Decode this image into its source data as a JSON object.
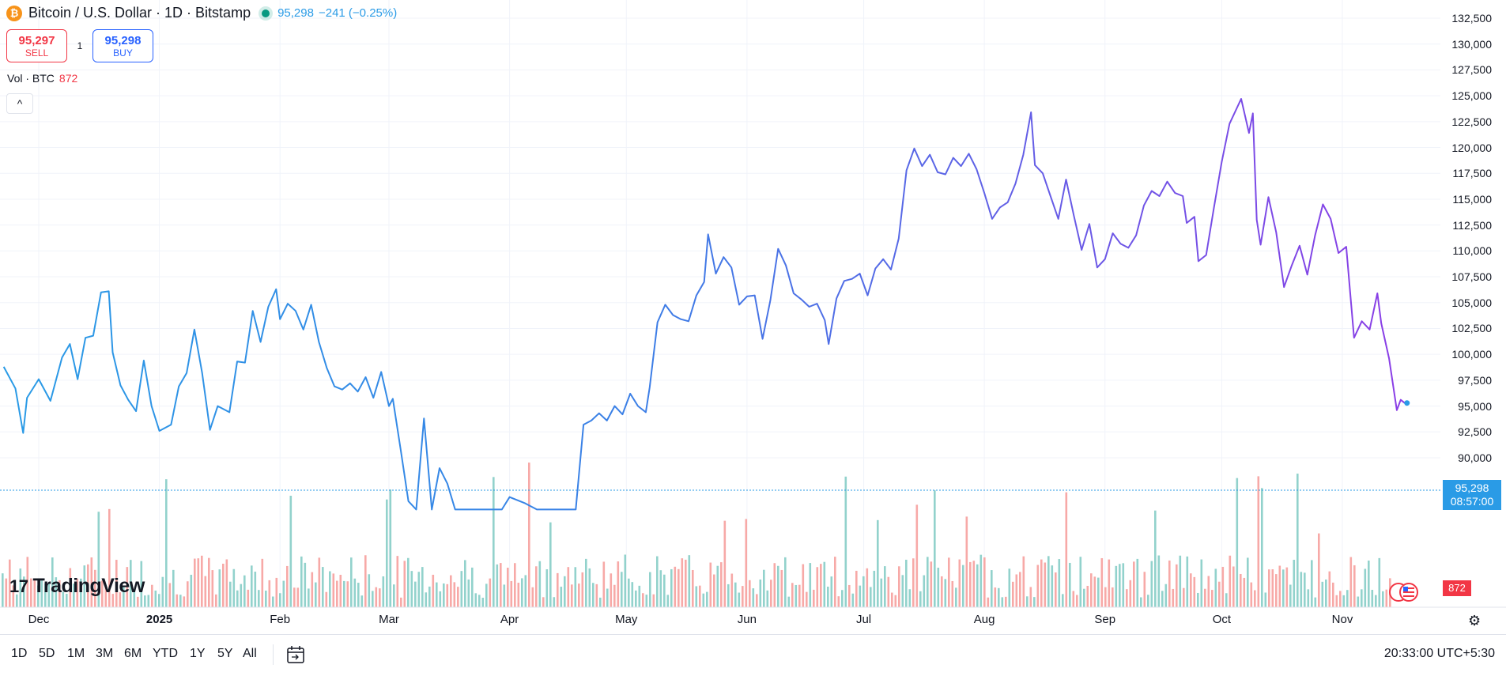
{
  "header": {
    "coin_icon": "₿",
    "symbol_title": "Bitcoin / U.S. Dollar · 1D · Bitstamp",
    "last_price": "95,298",
    "change": "−241 (−0.25%)"
  },
  "trade": {
    "sell_price": "95,297",
    "sell_label": "SELL",
    "spread": "1",
    "buy_price": "95,298",
    "buy_label": "BUY"
  },
  "volume_legend": {
    "label": "Vol · BTC",
    "value": "872"
  },
  "collapse_icon": "^",
  "price_axis_label": {
    "price": "95,298",
    "countdown": "08:57:00"
  },
  "volume_axis_label": "872",
  "logo_text": "TradingView",
  "bottom_bar": {
    "ranges": [
      "1D",
      "5D",
      "1M",
      "3M",
      "6M",
      "YTD",
      "1Y",
      "5Y",
      "All"
    ],
    "clock": "20:33:00 UTC+5:30"
  },
  "colors": {
    "line_start": "#2a9be6",
    "line_end": "#8b3ee6",
    "vol_up": "#92d2cc",
    "vol_down": "#f7a9a7",
    "grid": "#f0f3fa"
  },
  "chart_data": {
    "type": "line",
    "title": "Bitcoin / U.S. Dollar · 1D · Bitstamp",
    "x_labels": [
      "Dec",
      "2025",
      "Feb",
      "Mar",
      "Apr",
      "May",
      "Jun",
      "Jul",
      "Aug",
      "Sep",
      "Oct",
      "Nov"
    ],
    "y_ticks": [
      90000,
      92500,
      95000,
      97500,
      100000,
      102500,
      105000,
      107500,
      110000,
      112500,
      115000,
      117500,
      120000,
      122500,
      125000,
      127500,
      130000,
      132500
    ],
    "ylim": [
      85000,
      133500
    ],
    "grid": true,
    "series": [
      {
        "points": [
          [
            "2024-11-22",
            98800
          ],
          [
            "2024-11-25",
            96700
          ],
          [
            "2024-11-27",
            92400
          ],
          [
            "2024-11-28",
            95800
          ],
          [
            "2024-12-01",
            97600
          ],
          [
            "2024-12-04",
            95500
          ],
          [
            "2024-12-07",
            99700
          ],
          [
            "2024-12-09",
            101000
          ],
          [
            "2024-12-11",
            97600
          ],
          [
            "2024-12-13",
            101600
          ],
          [
            "2024-12-15",
            101800
          ],
          [
            "2024-12-17",
            106000
          ],
          [
            "2024-12-19",
            106100
          ],
          [
            "2024-12-20",
            100200
          ],
          [
            "2024-12-22",
            97000
          ],
          [
            "2024-12-24",
            95600
          ],
          [
            "2024-12-26",
            94500
          ],
          [
            "2024-12-28",
            99400
          ],
          [
            "2024-12-30",
            95000
          ],
          [
            "2025-01-01",
            92600
          ],
          [
            "2025-01-04",
            93200
          ],
          [
            "2025-01-06",
            96900
          ],
          [
            "2025-01-08",
            98200
          ],
          [
            "2025-01-10",
            102400
          ],
          [
            "2025-01-12",
            98200
          ],
          [
            "2025-01-14",
            92700
          ],
          [
            "2025-01-16",
            95000
          ],
          [
            "2025-01-19",
            94400
          ],
          [
            "2025-01-21",
            99300
          ],
          [
            "2025-01-23",
            99200
          ],
          [
            "2025-01-25",
            104200
          ],
          [
            "2025-01-27",
            101200
          ],
          [
            "2025-01-29",
            104600
          ],
          [
            "2025-01-31",
            106300
          ],
          [
            "2025-02-01",
            103400
          ],
          [
            "2025-02-03",
            104900
          ],
          [
            "2025-02-05",
            104200
          ],
          [
            "2025-02-07",
            102400
          ],
          [
            "2025-02-09",
            104800
          ],
          [
            "2025-02-11",
            101200
          ],
          [
            "2025-02-13",
            98700
          ],
          [
            "2025-02-15",
            96900
          ],
          [
            "2025-02-17",
            96600
          ],
          [
            "2025-02-19",
            97200
          ],
          [
            "2025-02-21",
            96400
          ],
          [
            "2025-02-23",
            97800
          ],
          [
            "2025-02-25",
            95800
          ],
          [
            "2025-02-27",
            98300
          ],
          [
            "2025-03-01",
            95000
          ],
          [
            "2025-03-02",
            95700
          ],
          [
            "2025-03-04",
            90800
          ],
          [
            "2025-03-06",
            85800
          ],
          [
            "2025-03-08",
            85000
          ],
          [
            "2025-03-10",
            93800
          ],
          [
            "2025-03-12",
            85000
          ],
          [
            "2025-03-14",
            89000
          ],
          [
            "2025-03-16",
            87500
          ],
          [
            "2025-03-18",
            85000
          ],
          [
            "2025-03-30",
            85000
          ],
          [
            "2025-04-01",
            86200
          ],
          [
            "2025-04-05",
            85600
          ],
          [
            "2025-04-08",
            85000
          ],
          [
            "2025-04-18",
            85000
          ],
          [
            "2025-04-20",
            93200
          ],
          [
            "2025-04-22",
            93600
          ],
          [
            "2025-04-24",
            94300
          ],
          [
            "2025-04-26",
            93600
          ],
          [
            "2025-04-28",
            95000
          ],
          [
            "2025-04-30",
            94200
          ],
          [
            "2025-05-02",
            96200
          ],
          [
            "2025-05-04",
            95000
          ],
          [
            "2025-05-06",
            94400
          ],
          [
            "2025-05-07",
            96800
          ],
          [
            "2025-05-09",
            103100
          ],
          [
            "2025-05-11",
            104800
          ],
          [
            "2025-05-13",
            103800
          ],
          [
            "2025-05-15",
            103400
          ],
          [
            "2025-05-17",
            103200
          ],
          [
            "2025-05-19",
            105700
          ],
          [
            "2025-05-21",
            107000
          ],
          [
            "2025-05-22",
            111600
          ],
          [
            "2025-05-24",
            107800
          ],
          [
            "2025-05-26",
            109400
          ],
          [
            "2025-05-28",
            108400
          ],
          [
            "2025-05-30",
            104800
          ],
          [
            "2025-06-01",
            105600
          ],
          [
            "2025-06-03",
            105700
          ],
          [
            "2025-06-05",
            101500
          ],
          [
            "2025-06-07",
            105200
          ],
          [
            "2025-06-09",
            110200
          ],
          [
            "2025-06-11",
            108600
          ],
          [
            "2025-06-13",
            105900
          ],
          [
            "2025-06-15",
            105300
          ],
          [
            "2025-06-17",
            104600
          ],
          [
            "2025-06-19",
            104900
          ],
          [
            "2025-06-21",
            103300
          ],
          [
            "2025-06-22",
            101000
          ],
          [
            "2025-06-24",
            105400
          ],
          [
            "2025-06-26",
            107100
          ],
          [
            "2025-06-28",
            107300
          ],
          [
            "2025-06-30",
            107800
          ],
          [
            "2025-07-02",
            105700
          ],
          [
            "2025-07-04",
            108300
          ],
          [
            "2025-07-06",
            109200
          ],
          [
            "2025-07-08",
            108200
          ],
          [
            "2025-07-10",
            111200
          ],
          [
            "2025-07-12",
            117800
          ],
          [
            "2025-07-14",
            119900
          ],
          [
            "2025-07-16",
            118200
          ],
          [
            "2025-07-18",
            119300
          ],
          [
            "2025-07-20",
            117600
          ],
          [
            "2025-07-22",
            117400
          ],
          [
            "2025-07-24",
            119000
          ],
          [
            "2025-07-26",
            118200
          ],
          [
            "2025-07-28",
            119400
          ],
          [
            "2025-07-30",
            117900
          ],
          [
            "2025-08-01",
            115600
          ],
          [
            "2025-08-03",
            113100
          ],
          [
            "2025-08-05",
            114200
          ],
          [
            "2025-08-07",
            114700
          ],
          [
            "2025-08-09",
            116500
          ],
          [
            "2025-08-11",
            119300
          ],
          [
            "2025-08-13",
            123400
          ],
          [
            "2025-08-14",
            118300
          ],
          [
            "2025-08-16",
            117500
          ],
          [
            "2025-08-18",
            115300
          ],
          [
            "2025-08-20",
            113100
          ],
          [
            "2025-08-22",
            116900
          ],
          [
            "2025-08-24",
            113400
          ],
          [
            "2025-08-26",
            110100
          ],
          [
            "2025-08-28",
            112600
          ],
          [
            "2025-08-30",
            108400
          ],
          [
            "2025-09-01",
            109200
          ],
          [
            "2025-09-03",
            111700
          ],
          [
            "2025-09-05",
            110700
          ],
          [
            "2025-09-07",
            110300
          ],
          [
            "2025-09-09",
            111500
          ],
          [
            "2025-09-11",
            114400
          ],
          [
            "2025-09-13",
            115800
          ],
          [
            "2025-09-15",
            115300
          ],
          [
            "2025-09-17",
            116700
          ],
          [
            "2025-09-19",
            115600
          ],
          [
            "2025-09-21",
            115300
          ],
          [
            "2025-09-22",
            112700
          ],
          [
            "2025-09-24",
            113300
          ],
          [
            "2025-09-25",
            109000
          ],
          [
            "2025-09-27",
            109600
          ],
          [
            "2025-09-29",
            114200
          ],
          [
            "2025-10-01",
            118600
          ],
          [
            "2025-10-03",
            122300
          ],
          [
            "2025-10-05",
            123900
          ],
          [
            "2025-10-06",
            124700
          ],
          [
            "2025-10-08",
            121400
          ],
          [
            "2025-10-09",
            123300
          ],
          [
            "2025-10-10",
            113000
          ],
          [
            "2025-10-11",
            110600
          ],
          [
            "2025-10-13",
            115200
          ],
          [
            "2025-10-15",
            111800
          ],
          [
            "2025-10-17",
            106500
          ],
          [
            "2025-10-19",
            108600
          ],
          [
            "2025-10-21",
            110500
          ],
          [
            "2025-10-23",
            107700
          ],
          [
            "2025-10-25",
            111500
          ],
          [
            "2025-10-27",
            114500
          ],
          [
            "2025-10-29",
            113100
          ],
          [
            "2025-10-31",
            109800
          ],
          [
            "2025-11-02",
            110400
          ],
          [
            "2025-11-04",
            101600
          ],
          [
            "2025-11-06",
            103200
          ],
          [
            "2025-11-08",
            102400
          ],
          [
            "2025-11-10",
            105900
          ],
          [
            "2025-11-11",
            103000
          ],
          [
            "2025-11-13",
            99600
          ],
          [
            "2025-11-15",
            94600
          ],
          [
            "2025-11-16",
            95600
          ],
          [
            "2025-11-17",
            95298
          ]
        ]
      }
    ],
    "volume_series": {
      "name": "Vol · BTC",
      "last": 872
    }
  }
}
